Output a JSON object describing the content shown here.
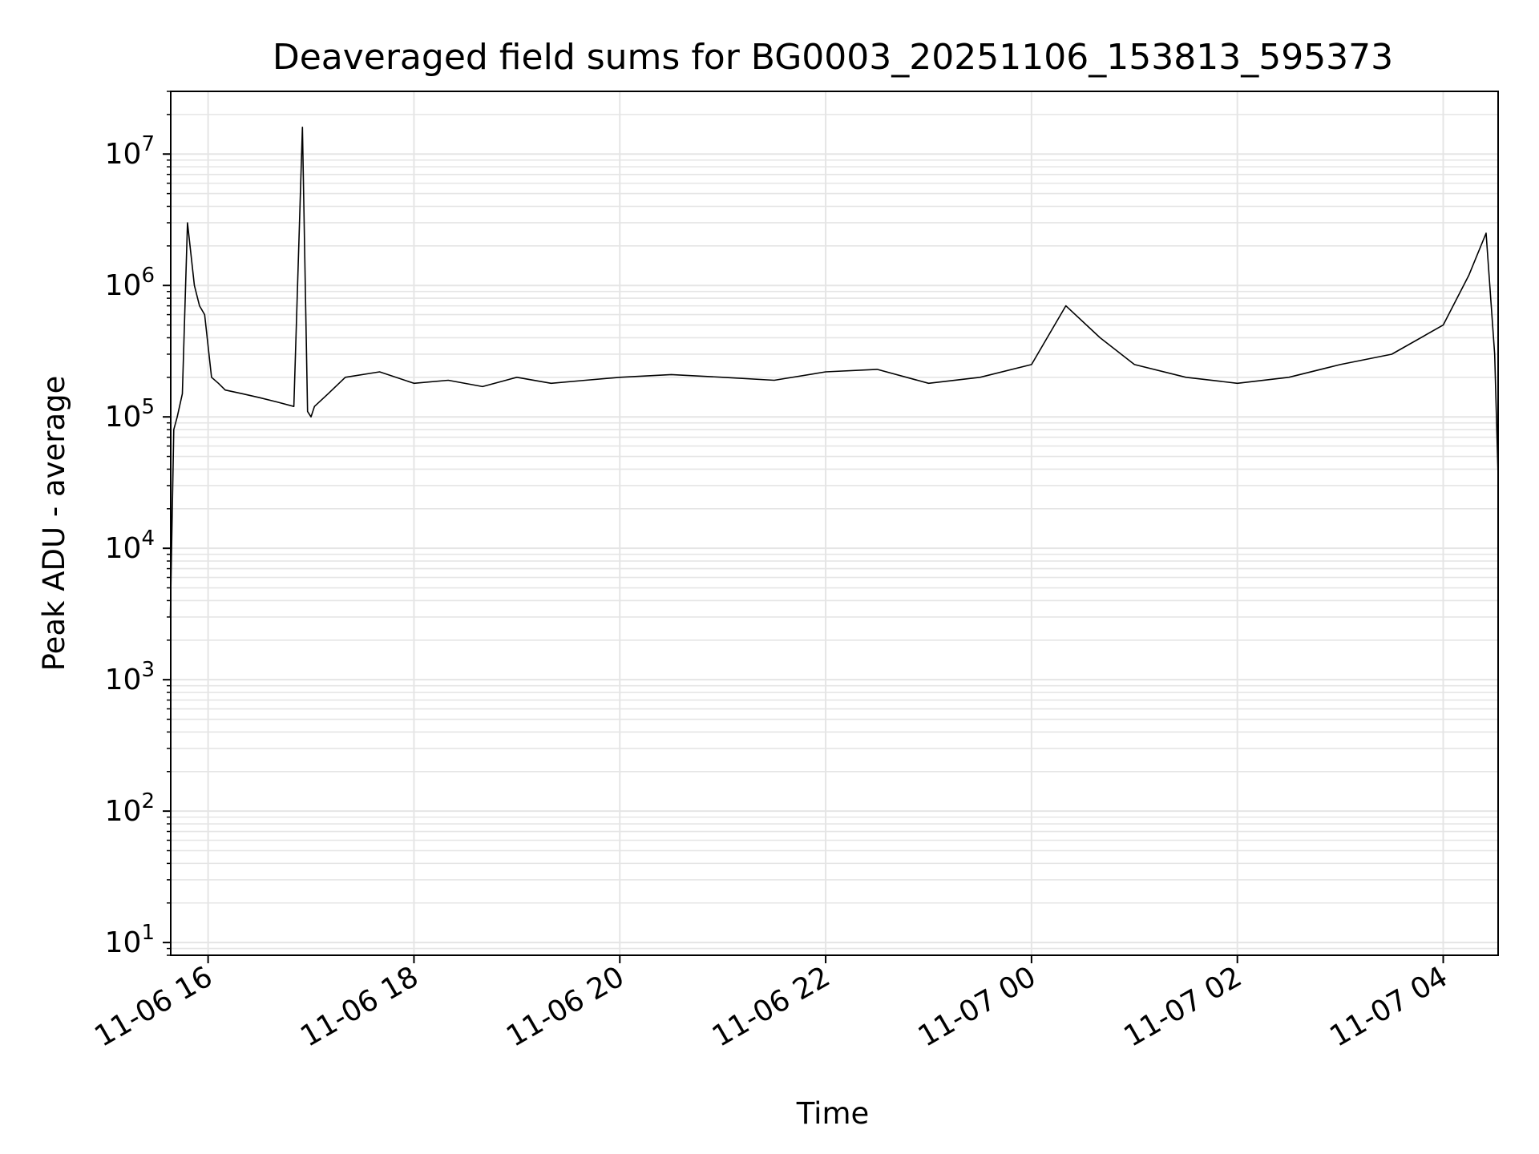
{
  "chart_data": {
    "type": "line",
    "title": "Deaveraged field sums for BG0003_20251106_153813_595373",
    "xlabel": "Time",
    "ylabel": "Peak ADU - average",
    "yscale": "log",
    "ylim": [
      8,
      30000000
    ],
    "xlim": [
      "2025-11-06 15:38:13",
      "2025-11-07 04:32:00"
    ],
    "grid": true,
    "grid_color": "#e5e5e5",
    "line_color": "#000000",
    "x_ticks": [
      {
        "time": "2025-11-06 16:00",
        "label": "11-06 16"
      },
      {
        "time": "2025-11-06 18:00",
        "label": "11-06 18"
      },
      {
        "time": "2025-11-06 20:00",
        "label": "11-06 20"
      },
      {
        "time": "2025-11-06 22:00",
        "label": "11-06 22"
      },
      {
        "time": "2025-11-07 00:00",
        "label": "11-07 00"
      },
      {
        "time": "2025-11-07 02:00",
        "label": "11-07 02"
      },
      {
        "time": "2025-11-07 04:00",
        "label": "11-07 04"
      }
    ],
    "y_ticks": [
      {
        "value": 10,
        "base": "10",
        "exp": "1"
      },
      {
        "value": 100,
        "base": "10",
        "exp": "2"
      },
      {
        "value": 1000,
        "base": "10",
        "exp": "3"
      },
      {
        "value": 10000,
        "base": "10",
        "exp": "4"
      },
      {
        "value": 100000,
        "base": "10",
        "exp": "5"
      },
      {
        "value": 1000000,
        "base": "10",
        "exp": "6"
      },
      {
        "value": 10000000,
        "base": "10",
        "exp": "7"
      }
    ],
    "series": [
      {
        "x": [
          "2025-11-06 15:38",
          "2025-11-06 15:40",
          "2025-11-06 15:42",
          "2025-11-06 15:45",
          "2025-11-06 15:48",
          "2025-11-06 15:52",
          "2025-11-06 15:55",
          "2025-11-06 15:58",
          "2025-11-06 16:02",
          "2025-11-06 16:06",
          "2025-11-06 16:10",
          "2025-11-06 16:20",
          "2025-11-06 16:30",
          "2025-11-06 16:40",
          "2025-11-06 16:50",
          "2025-11-06 16:55",
          "2025-11-06 16:58",
          "2025-11-06 17:00",
          "2025-11-06 17:02",
          "2025-11-06 17:10",
          "2025-11-06 17:20",
          "2025-11-06 17:40",
          "2025-11-06 18:00",
          "2025-11-06 18:20",
          "2025-11-06 18:40",
          "2025-11-06 19:00",
          "2025-11-06 19:20",
          "2025-11-06 19:40",
          "2025-11-06 20:00",
          "2025-11-06 20:30",
          "2025-11-06 21:00",
          "2025-11-06 21:30",
          "2025-11-06 22:00",
          "2025-11-06 22:30",
          "2025-11-06 23:00",
          "2025-11-06 23:30",
          "2025-11-07 00:00",
          "2025-11-07 00:20",
          "2025-11-07 00:40",
          "2025-11-07 01:00",
          "2025-11-07 01:30",
          "2025-11-07 02:00",
          "2025-11-07 02:30",
          "2025-11-07 03:00",
          "2025-11-07 03:30",
          "2025-11-07 04:00",
          "2025-11-07 04:15",
          "2025-11-07 04:25",
          "2025-11-07 04:30",
          "2025-11-07 04:32"
        ],
        "y": [
          3000,
          80000,
          100000,
          150000,
          3000000,
          1000000,
          700000,
          600000,
          200000,
          180000,
          160000,
          150000,
          140000,
          130000,
          120000,
          16000000,
          110000,
          100000,
          120000,
          150000,
          200000,
          220000,
          180000,
          190000,
          170000,
          200000,
          180000,
          190000,
          200000,
          210000,
          200000,
          190000,
          220000,
          230000,
          180000,
          200000,
          250000,
          700000,
          400000,
          250000,
          200000,
          180000,
          200000,
          250000,
          300000,
          500000,
          1200000,
          2500000,
          300000,
          35000
        ]
      }
    ]
  }
}
